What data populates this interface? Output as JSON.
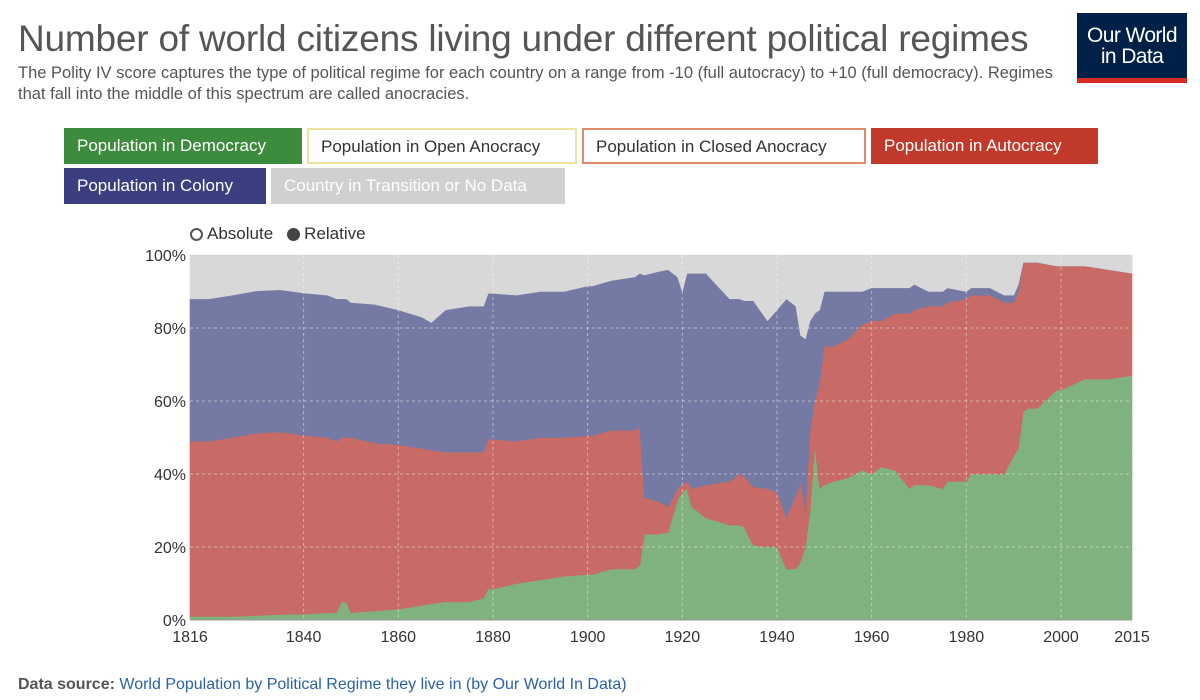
{
  "header": {
    "title": "Number of world citizens living under different political regimes",
    "subtitle": "The Polity IV score captures the type of political regime for each country on a range from -10 (full autocracy) to +10 (full democracy). Regimes that fall into the middle of this spectrum are called anocracies."
  },
  "logo": {
    "line1": "Our World",
    "line2": "in Data",
    "bg_color": "#002147",
    "accent_color": "#d42b21"
  },
  "legend": {
    "items": [
      {
        "label": "Population in Democracy",
        "color": "#3d8b3d",
        "active": true
      },
      {
        "label": "Population in Open Anocracy",
        "color": "#f0e3a0",
        "active": false
      },
      {
        "label": "Population in Closed Anocracy",
        "color": "#e08a6a",
        "active": false
      },
      {
        "label": "Population in Autocracy",
        "color": "#c0392b",
        "active": true
      },
      {
        "label": "Population in Colony",
        "color": "#3b3f80",
        "active": true
      },
      {
        "label": "Country in Transition or No Data",
        "color": "#d0d0d0",
        "active": true
      }
    ]
  },
  "view_toggle": {
    "absolute_label": "Absolute",
    "relative_label": "Relative",
    "selected": "relative"
  },
  "chart_data": {
    "type": "area",
    "stacked": true,
    "normalized": true,
    "xlim": [
      1816,
      2015
    ],
    "ylim": [
      0,
      100
    ],
    "x_ticks": [
      "1816",
      "1840",
      "1860",
      "1880",
      "1900",
      "1920",
      "1940",
      "1960",
      "1980",
      "2000",
      "2015"
    ],
    "y_ticks": [
      "0%",
      "20%",
      "40%",
      "60%",
      "80%",
      "100%"
    ],
    "grid": true,
    "x": [
      1816,
      1820,
      1825,
      1830,
      1835,
      1840,
      1845,
      1847,
      1848,
      1849,
      1850,
      1855,
      1860,
      1865,
      1867,
      1870,
      1875,
      1878,
      1879,
      1880,
      1885,
      1890,
      1895,
      1900,
      1901,
      1905,
      1910,
      1911,
      1912,
      1915,
      1917,
      1919,
      1920,
      1921,
      1922,
      1925,
      1930,
      1932,
      1933,
      1935,
      1938,
      1940,
      1942,
      1944,
      1945,
      1946,
      1947,
      1948,
      1949,
      1950,
      1952,
      1955,
      1958,
      1960,
      1962,
      1965,
      1968,
      1969,
      1972,
      1975,
      1976,
      1980,
      1981,
      1984,
      1985,
      1988,
      1990,
      1991,
      1992,
      1993,
      1995,
      1999,
      2000,
      2005,
      2010,
      2015
    ],
    "series": [
      {
        "name": "Population in Democracy",
        "color": "#7fb27c",
        "values": [
          1,
          1,
          1,
          1.2,
          1.5,
          1.6,
          2,
          2,
          5,
          5,
          2,
          2.5,
          3,
          4,
          4.5,
          5,
          5,
          6,
          8.5,
          8.5,
          10,
          11,
          12,
          12.5,
          12.5,
          14,
          14,
          15,
          23.5,
          23.5,
          24,
          33,
          35,
          36,
          31,
          28,
          26,
          26,
          25.5,
          20.5,
          20,
          20,
          14,
          14,
          16,
          20,
          30,
          48,
          36,
          37,
          38,
          39,
          41,
          40,
          42,
          41,
          36,
          37,
          37,
          36,
          38,
          38,
          40,
          40,
          40,
          40,
          45,
          47,
          57,
          58,
          58,
          63,
          63,
          66,
          66,
          67
        ]
      },
      {
        "name": "Population in Autocracy",
        "color": "#c86a65",
        "values": [
          48,
          48,
          49,
          50,
          50,
          49,
          48,
          47,
          45,
          45,
          48,
          46,
          45,
          43,
          42,
          41,
          41,
          40,
          41,
          41,
          39,
          39,
          38,
          38,
          38,
          38,
          38,
          38,
          10,
          9,
          7,
          3,
          2,
          2,
          5,
          9,
          12,
          14,
          14,
          16,
          16,
          15,
          14,
          20,
          22,
          10,
          22,
          12,
          29,
          38,
          37,
          38,
          40,
          42,
          40,
          43,
          48,
          48,
          49,
          50,
          49,
          50,
          49,
          49,
          49,
          47,
          42,
          43,
          41,
          40,
          40,
          34,
          34,
          31,
          30,
          28
        ]
      },
      {
        "name": "Population in Colony",
        "color": "#747aa3",
        "values": [
          39,
          39,
          39,
          39,
          39,
          39,
          39,
          39,
          38,
          38,
          37,
          38,
          37,
          36,
          35,
          39,
          40,
          40,
          40,
          40,
          40,
          40,
          40,
          41,
          41,
          41,
          42,
          42,
          61,
          63,
          65,
          58,
          53,
          57,
          59,
          58,
          50,
          48,
          48,
          51,
          46,
          50,
          60,
          52,
          40,
          47,
          30,
          24,
          20,
          15,
          15,
          13,
          9,
          9,
          9,
          7,
          7,
          7,
          4,
          4,
          4,
          2,
          2,
          2,
          2,
          2,
          2,
          2,
          0,
          0,
          0,
          0,
          0,
          0,
          0,
          0
        ]
      },
      {
        "name": "Country in Transition or No Data",
        "color": "#d8d8d8",
        "values": [
          12,
          12,
          11,
          9.8,
          9.5,
          10.4,
          11,
          12,
          12,
          12,
          13,
          13.5,
          15,
          17,
          18.5,
          15,
          14,
          14,
          10.5,
          10.5,
          11,
          10,
          10,
          8.5,
          8.5,
          7,
          6,
          5,
          5.5,
          4.5,
          4,
          6,
          10,
          5,
          5,
          5,
          12,
          12,
          12.5,
          12.5,
          18,
          15,
          12,
          14,
          22,
          23,
          18,
          16,
          15,
          10,
          10,
          10,
          10,
          9,
          9,
          9,
          9,
          8,
          10,
          10,
          9,
          10,
          9,
          9,
          9,
          11,
          11,
          8,
          2,
          2,
          2,
          3,
          3,
          3,
          4,
          5
        ]
      }
    ]
  },
  "footer": {
    "source_label": "Data source:",
    "source_text": "World Population by Political Regime they live in (by Our World In Data)"
  }
}
